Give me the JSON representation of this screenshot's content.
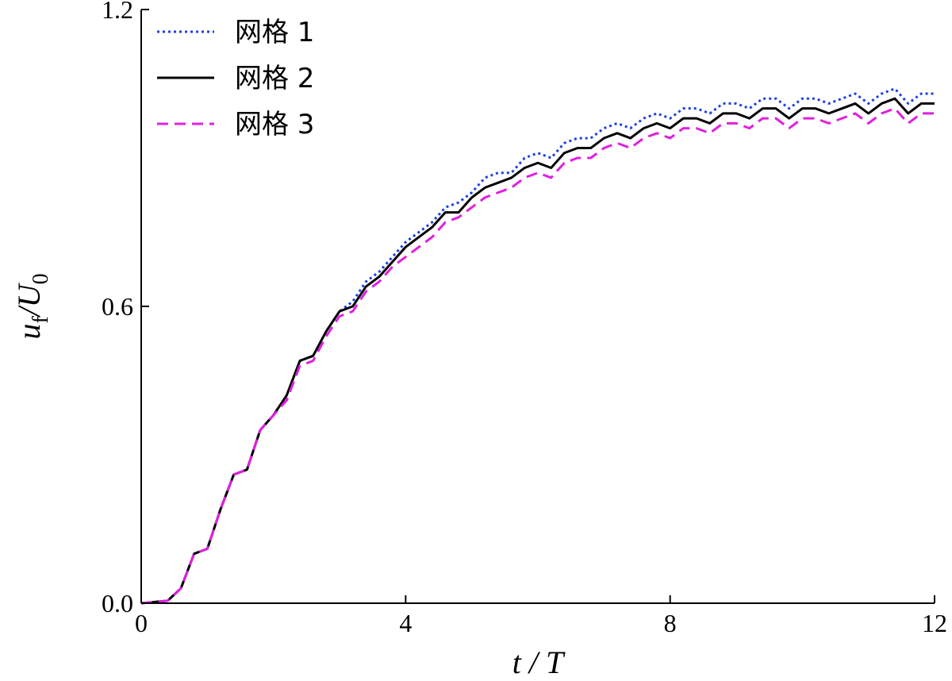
{
  "chart_data": {
    "type": "line",
    "xlabel": "t / T",
    "ylabel": "u_f/U_0",
    "xlim": [
      0,
      12
    ],
    "ylim": [
      0,
      1.2
    ],
    "x_ticks": [
      "0",
      "4",
      "8",
      "12"
    ],
    "y_ticks": [
      "0.0",
      "0.6",
      "1.2"
    ],
    "grid": false,
    "legend_position": "top-left",
    "series": [
      {
        "name": "网格 1",
        "color": "#1f3fe0",
        "dash": "dotted",
        "x": [
          0,
          0.4,
          0.6,
          0.8,
          1.0,
          1.2,
          1.4,
          1.6,
          1.8,
          2.0,
          2.2,
          2.4,
          2.6,
          2.8,
          3.0,
          3.2,
          3.4,
          3.6,
          3.8,
          4.0,
          4.2,
          4.4,
          4.6,
          4.8,
          5.0,
          5.2,
          5.4,
          5.6,
          5.8,
          6.0,
          6.2,
          6.4,
          6.6,
          6.8,
          7.0,
          7.2,
          7.4,
          7.6,
          7.8,
          8.0,
          8.2,
          8.4,
          8.6,
          8.8,
          9.0,
          9.2,
          9.4,
          9.6,
          9.8,
          10.0,
          10.2,
          10.4,
          10.6,
          10.8,
          11.0,
          11.2,
          11.4,
          11.6,
          11.8,
          12.0
        ],
        "y": [
          0,
          0.005,
          0.03,
          0.1,
          0.11,
          0.19,
          0.26,
          0.27,
          0.35,
          0.38,
          0.42,
          0.49,
          0.5,
          0.55,
          0.59,
          0.61,
          0.65,
          0.67,
          0.7,
          0.73,
          0.75,
          0.77,
          0.8,
          0.81,
          0.83,
          0.86,
          0.87,
          0.87,
          0.9,
          0.91,
          0.9,
          0.93,
          0.94,
          0.94,
          0.96,
          0.97,
          0.96,
          0.98,
          0.99,
          0.98,
          1.0,
          1.0,
          0.99,
          1.01,
          1.01,
          1.0,
          1.02,
          1.02,
          1.0,
          1.02,
          1.02,
          1.01,
          1.02,
          1.03,
          1.01,
          1.03,
          1.04,
          1.01,
          1.03,
          1.03
        ]
      },
      {
        "name": "网格 2",
        "color": "#000000",
        "dash": "solid",
        "x": [
          0,
          0.4,
          0.6,
          0.8,
          1.0,
          1.2,
          1.4,
          1.6,
          1.8,
          2.0,
          2.2,
          2.4,
          2.6,
          2.8,
          3.0,
          3.2,
          3.4,
          3.6,
          3.8,
          4.0,
          4.2,
          4.4,
          4.6,
          4.8,
          5.0,
          5.2,
          5.4,
          5.6,
          5.8,
          6.0,
          6.2,
          6.4,
          6.6,
          6.8,
          7.0,
          7.2,
          7.4,
          7.6,
          7.8,
          8.0,
          8.2,
          8.4,
          8.6,
          8.8,
          9.0,
          9.2,
          9.4,
          9.6,
          9.8,
          10.0,
          10.2,
          10.4,
          10.6,
          10.8,
          11.0,
          11.2,
          11.4,
          11.6,
          11.8,
          12.0
        ],
        "y": [
          0,
          0.005,
          0.03,
          0.1,
          0.11,
          0.19,
          0.26,
          0.27,
          0.35,
          0.38,
          0.42,
          0.49,
          0.5,
          0.55,
          0.59,
          0.6,
          0.64,
          0.66,
          0.69,
          0.72,
          0.74,
          0.76,
          0.79,
          0.79,
          0.82,
          0.84,
          0.85,
          0.86,
          0.88,
          0.89,
          0.88,
          0.91,
          0.92,
          0.92,
          0.94,
          0.95,
          0.94,
          0.96,
          0.97,
          0.96,
          0.98,
          0.98,
          0.97,
          0.99,
          0.99,
          0.98,
          1.0,
          1.0,
          0.98,
          1.0,
          1.0,
          0.99,
          1.0,
          1.01,
          0.99,
          1.01,
          1.02,
          0.99,
          1.01,
          1.01
        ]
      },
      {
        "name": "网格 3",
        "color": "#e020e0",
        "dash": "dashed",
        "x": [
          0,
          0.4,
          0.6,
          0.8,
          1.0,
          1.2,
          1.4,
          1.6,
          1.8,
          2.0,
          2.2,
          2.4,
          2.6,
          2.8,
          3.0,
          3.2,
          3.4,
          3.6,
          3.8,
          4.0,
          4.2,
          4.4,
          4.6,
          4.8,
          5.0,
          5.2,
          5.4,
          5.6,
          5.8,
          6.0,
          6.2,
          6.4,
          6.6,
          6.8,
          7.0,
          7.2,
          7.4,
          7.6,
          7.8,
          8.0,
          8.2,
          8.4,
          8.6,
          8.8,
          9.0,
          9.2,
          9.4,
          9.6,
          9.8,
          10.0,
          10.2,
          10.4,
          10.6,
          10.8,
          11.0,
          11.2,
          11.4,
          11.6,
          11.8,
          12.0
        ],
        "y": [
          0,
          0.005,
          0.03,
          0.1,
          0.11,
          0.19,
          0.26,
          0.27,
          0.35,
          0.38,
          0.41,
          0.48,
          0.49,
          0.54,
          0.58,
          0.59,
          0.63,
          0.65,
          0.68,
          0.7,
          0.72,
          0.74,
          0.77,
          0.78,
          0.8,
          0.82,
          0.83,
          0.84,
          0.86,
          0.87,
          0.86,
          0.89,
          0.9,
          0.9,
          0.92,
          0.93,
          0.92,
          0.94,
          0.95,
          0.94,
          0.96,
          0.96,
          0.95,
          0.97,
          0.97,
          0.96,
          0.98,
          0.98,
          0.96,
          0.98,
          0.98,
          0.97,
          0.98,
          0.99,
          0.97,
          0.99,
          1.0,
          0.97,
          0.99,
          0.99
        ]
      }
    ]
  }
}
